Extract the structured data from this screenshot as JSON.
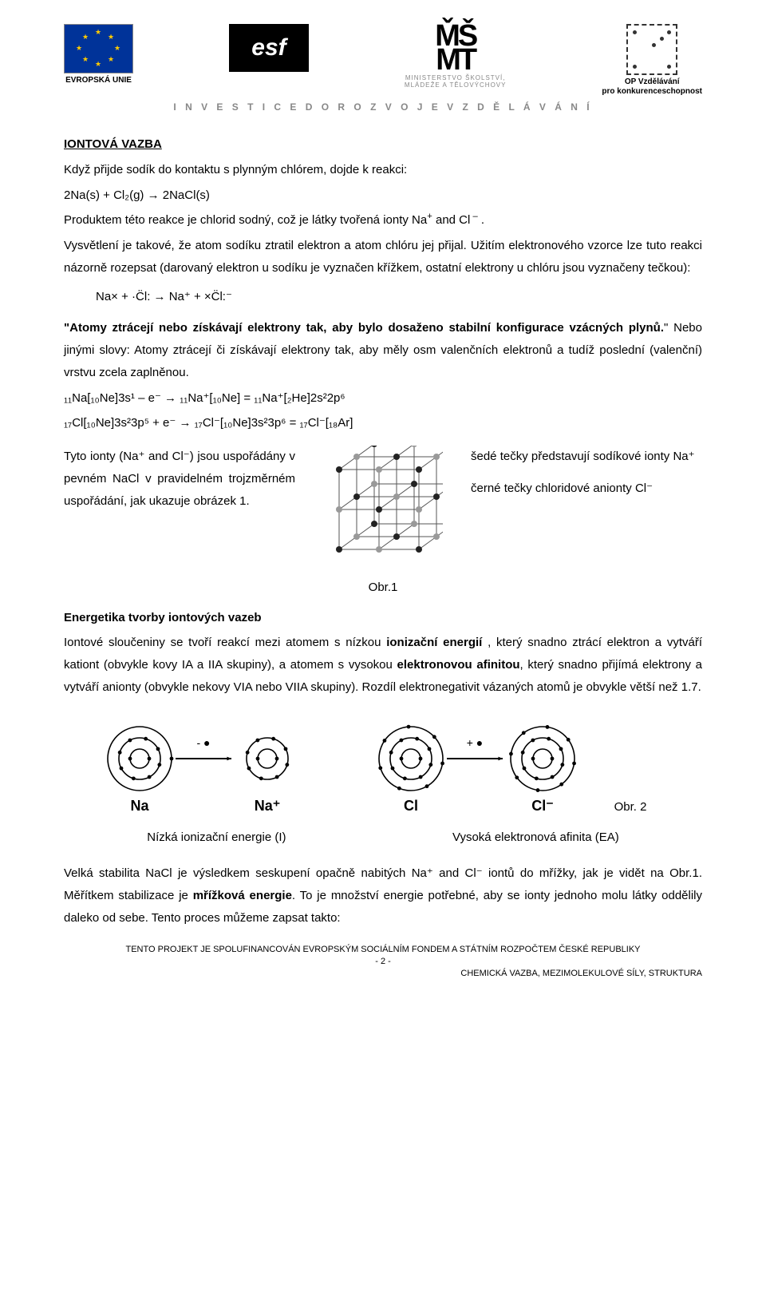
{
  "header": {
    "tagline": "I N V E S T I C E   D O   R O Z V O J E   V Z D Ě L Á V Á N Í",
    "eu_label": "EVROPSKÁ UNIE",
    "esf_text": "esf",
    "msmt_symbol": "MŠ\nMT",
    "msmt_line1": "MINISTERSTVO ŠKOLSTVÍ,",
    "msmt_line2": "MLÁDEŽE A TĚLOVÝCHOVY",
    "opvk_line1": "OP Vzdělávání",
    "opvk_line2": "pro konkurenceschopnost"
  },
  "main": {
    "title": "IONTOVÁ VAZBA",
    "para1": "Když přijde sodík do kontaktu s plynným chlórem, dojde k reakci:",
    "eq1": "2Na(s) + Cl₂(g) → 2NaCl(s)",
    "para2_before": "Produktem této reakce je chlorid sodný, což je látky tvořená ionty Na",
    "para2_mid": " and Cl",
    "para2_after": " .",
    "para3": "Vysvětlení je takové, že atom sodíku ztratil elektron a atom chlóru jej přijal. Užitím elektronového vzorce lze tuto reakci názorně rozepsat (darovaný elektron u sodíku je vyznačen křížkem, ostatní elektrony u chlóru jsou vyznačeny tečkou):",
    "eq2_plain": "Na× + ·C̈l: → Na⁺ + ×C̈l:⁻",
    "quote_a": "\"Atomy ztrácejí nebo získávají elektrony tak, aby bylo dosaženo stabilní konfigurace vzácných plynů.",
    "quote_b": "\" Nebo jinými slovy: Atomy ztrácejí či získávají elektrony tak, aby měly osm valenčních elektronů a tudíž poslední (valenční) vrstvu zcela zaplněnou.",
    "config1": "₁₁Na[₁₀Ne]3s¹ – e⁻ → ₁₁Na⁺[₁₀Ne] = ₁₁Na⁺[₂He]2s²2p⁶",
    "config2": "₁₇Cl[₁₀Ne]3s²3p⁵ + e⁻ → ₁₇Cl⁻[₁₀Ne]3s²3p⁶ = ₁₇Cl⁻[₁₈Ar]",
    "left_col_a": "Tyto ionty (Na⁺ and Cl⁻) jsou uspořádány v pevném NaCl v pravidelném trojzměrném uspořádání, jak ukazuje obrázek 1.",
    "right_col_a": "šedé tečky představují sodíkové ionty Na⁺",
    "right_col_b": "černé tečky chloridové anionty Cl⁻",
    "fig1_label": "Obr.1",
    "section2_title": "Energetika tvorby iontových vazeb",
    "para4_a": "Iontové sloučeniny se tvoří reakcí mezi atomem s nízkou ",
    "para4_b": "ionizační energií",
    "para4_c": " , který snadno ztrácí elektron a vytváří kationt (obvykle kovy IA a IIA skupiny),  a atomem s vysokou ",
    "para4_d": "elektronovou afinitou",
    "para4_e": ", který snadno přijímá elektrony a vytváří anionty (obvykle nekovy VIA nebo VIIA skupiny). Rozdíl elektronegativit vázaných atomů je obvykle větší než 1.7.",
    "atom_labels": {
      "na": "Na",
      "na_plus": "Na⁺",
      "cl": "Cl",
      "cl_minus": "Cl⁻",
      "minus_e": "-",
      "plus_e": "+"
    },
    "fig2_label": "Obr. 2",
    "caption_left": "Nízká ionizační energie (I)",
    "caption_right": "Vysoká elektronová afinita (EA)",
    "para5_a": "Velká stabilita  NaCl je výsledkem seskupení opačně nabitých Na⁺ and Cl⁻ iontů do mřížky, jak je vidět na Obr.1. Měřítkem stabilizace je ",
    "para5_b": "mřížková energie",
    "para5_c": ". To je množství energie potřebné, aby se ionty jednoho molu látky oddělily daleko od sebe. Tento proces můžeme zapsat takto:"
  },
  "footer": {
    "line1": "TENTO PROJEKT JE SPOLUFINANCOVÁN EVROPSKÝM SOCIÁLNÍM FONDEM A STÁTNÍM ROZPOČTEM ČESKÉ REPUBLIKY",
    "page": "- 2 -",
    "right": "CHEMICKÁ VAZBA, MEZIMOLEKULOVÉ SÍLY, STRUKTURA"
  },
  "lattice": {
    "size": 150,
    "line_color": "#555555",
    "dark_dot": "#222222",
    "grey_dot": "#999999",
    "background": "#ffffff"
  },
  "atom_style": {
    "stroke": "#000000",
    "stroke_width": 1.6,
    "dot_radius": 2.4,
    "font_size": 17
  },
  "colors": {
    "text": "#000000",
    "tagline": "#888888",
    "eu_blue": "#003399",
    "eu_gold": "#ffcc00"
  }
}
